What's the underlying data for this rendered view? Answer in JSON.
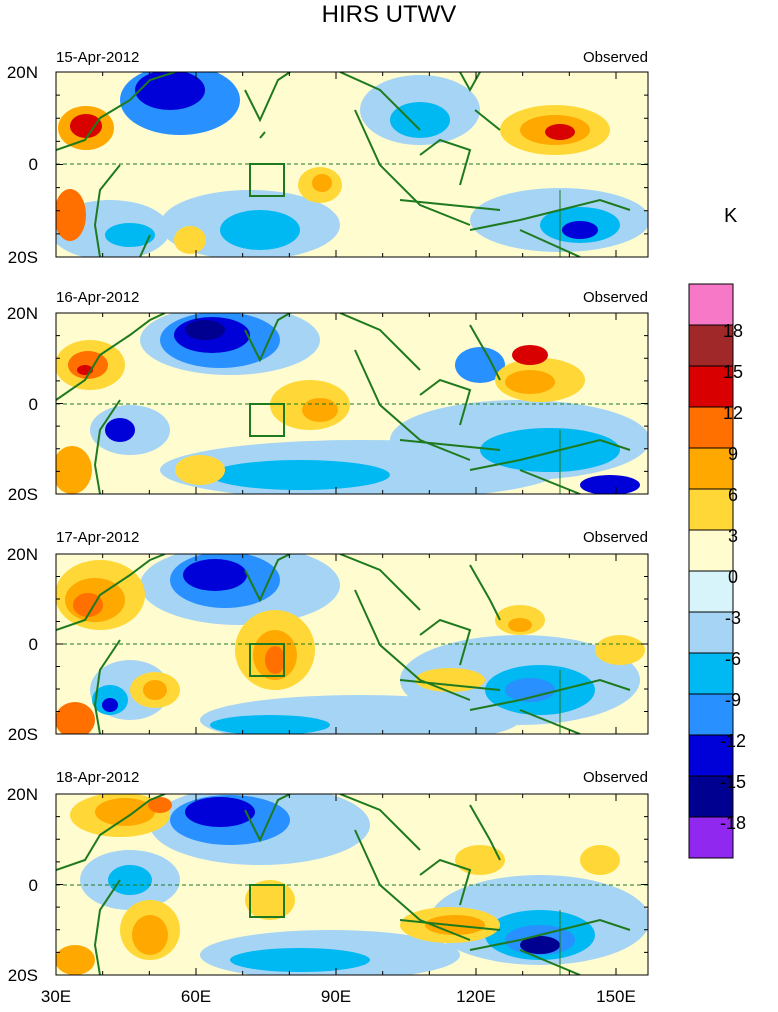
{
  "title": "HIRS UTWV",
  "panels": [
    {
      "date": "15-Apr-2012",
      "label": "Observed"
    },
    {
      "date": "16-Apr-2012",
      "label": "Observed"
    },
    {
      "date": "17-Apr-2012",
      "label": "Observed"
    },
    {
      "date": "18-Apr-2012",
      "label": "Observed"
    }
  ],
  "lat_labels": [
    "20N",
    "0",
    "20S"
  ],
  "lon_labels": [
    "30E",
    "60E",
    "90E",
    "120E",
    "150E"
  ],
  "colorbar": {
    "unit": "K",
    "levels": [
      "18",
      "15",
      "12",
      "9",
      "6",
      "3",
      "0",
      "-3",
      "-6",
      "-9",
      "-12",
      "-15",
      "-18"
    ],
    "colors": [
      "#f878c8",
      "#a02828",
      "#d80000",
      "#ff7000",
      "#ffa800",
      "#ffd838",
      "#fffcd0",
      "#d6f4fa",
      "#a6d4f4",
      "#00b8f2",
      "#2890ff",
      "#0000d8",
      "#000090",
      "#9028f0"
    ]
  }
}
